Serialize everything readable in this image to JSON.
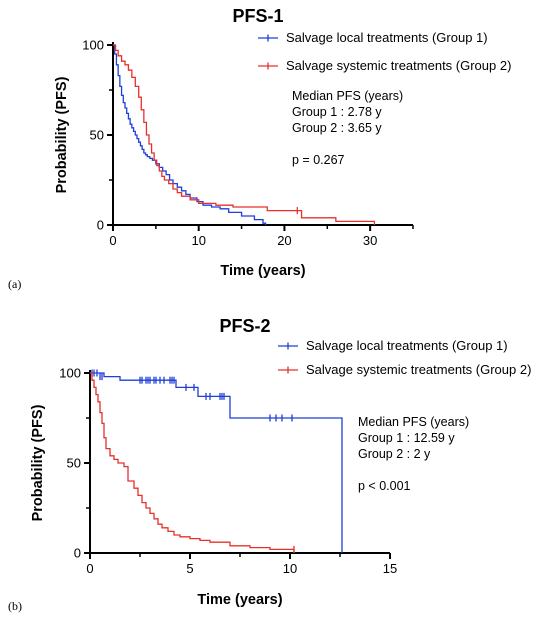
{
  "chart_data": [
    {
      "panel_label": "(a)",
      "type": "line",
      "title": "PFS-1",
      "xlabel": "Time (years)",
      "ylabel": "Probability (PFS)",
      "xlim": [
        0,
        35
      ],
      "ylim": [
        0,
        100
      ],
      "xticks": [
        0,
        10,
        20,
        30
      ],
      "yticks": [
        0,
        50,
        100
      ],
      "grid": false,
      "legend_position": "top-right",
      "series": [
        {
          "name": "Salvage local treatments (Group 1)",
          "color": "#1f3fd9",
          "x": [
            0,
            0.2,
            0.4,
            0.6,
            0.8,
            1.0,
            1.2,
            1.4,
            1.6,
            1.8,
            2.0,
            2.2,
            2.4,
            2.6,
            2.8,
            3.0,
            3.2,
            3.4,
            3.6,
            3.8,
            4.0,
            4.3,
            4.6,
            5.0,
            5.4,
            5.8,
            6.2,
            6.6,
            7.0,
            7.5,
            8.0,
            8.5,
            9.0,
            9.8,
            10.5,
            11.5,
            12.5,
            13.5,
            15.0,
            16.5,
            17.5,
            17.8
          ],
          "y": [
            100,
            95,
            89,
            83,
            77,
            72,
            68,
            65,
            62,
            59,
            56,
            54,
            52,
            50,
            48,
            46,
            44,
            42,
            40,
            39,
            38,
            37,
            36,
            34,
            32,
            30,
            28,
            25,
            23,
            21,
            19,
            17,
            15,
            13,
            11,
            10,
            9,
            7,
            5,
            3,
            1,
            0
          ],
          "censored_x": [],
          "censored_y": []
        },
        {
          "name": "Salvage systemic treatments (Group 2)",
          "color": "#e8302a",
          "x": [
            0,
            0.3,
            0.6,
            1.0,
            1.4,
            1.8,
            2.2,
            2.6,
            3.0,
            3.3,
            3.6,
            3.9,
            4.2,
            4.5,
            4.8,
            5.1,
            5.4,
            5.7,
            6.0,
            6.5,
            7.0,
            7.5,
            8.0,
            9.0,
            10.0,
            12.0,
            14.0,
            18.0,
            21.5,
            22.0,
            26.0,
            30.5
          ],
          "y": [
            100,
            97,
            94,
            91,
            89,
            86,
            82,
            77,
            71,
            64,
            57,
            50,
            45,
            40,
            36,
            33,
            30,
            27,
            25,
            23,
            20,
            18,
            16,
            14,
            12,
            11,
            10,
            8,
            8,
            4,
            2,
            0
          ],
          "censored_x": [
            21.5
          ],
          "censored_y": [
            8
          ]
        }
      ],
      "annotation_lines": [
        "Median PFS (years)",
        "Group 1 : 2.78 y",
        "Group 2 : 3.65 y",
        "",
        "p = 0.267"
      ]
    },
    {
      "panel_label": "(b)",
      "type": "line",
      "title": "PFS-2",
      "xlabel": "Time (years)",
      "ylabel": "Probability (PFS)",
      "xlim": [
        0,
        15
      ],
      "ylim": [
        0,
        100
      ],
      "xticks": [
        0,
        5,
        10,
        15
      ],
      "yticks": [
        0,
        50,
        100
      ],
      "grid": false,
      "legend_position": "top-right",
      "series": [
        {
          "name": "Salvage local treatments (Group 1)",
          "color": "#1f3fd9",
          "x": [
            0,
            0.3,
            0.7,
            1.5,
            4.3,
            5.4,
            7.0,
            12.6,
            12.6
          ],
          "y": [
            100,
            100,
            98,
            96,
            92,
            87,
            75,
            75,
            0
          ],
          "censored_x": [
            0.1,
            0.2,
            0.35,
            0.5,
            0.6,
            2.5,
            2.6,
            2.8,
            2.9,
            3.0,
            3.2,
            3.3,
            3.5,
            3.7,
            4.0,
            4.1,
            4.2,
            4.8,
            5.2,
            5.8,
            6.0,
            6.5,
            6.6,
            6.7,
            9.0,
            9.3,
            9.6,
            10.1
          ],
          "censored_y": [
            100,
            100,
            100,
            98,
            98,
            96,
            96,
            96,
            96,
            96,
            96,
            96,
            96,
            96,
            96,
            96,
            96,
            92,
            92,
            87,
            87,
            87,
            87,
            87,
            75,
            75,
            75,
            75
          ]
        },
        {
          "name": "Salvage systemic treatments (Group 2)",
          "color": "#e8302a",
          "x": [
            0,
            0.1,
            0.2,
            0.3,
            0.4,
            0.5,
            0.6,
            0.7,
            0.8,
            1.0,
            1.2,
            1.4,
            1.7,
            1.9,
            2.2,
            2.4,
            2.6,
            2.8,
            3.0,
            3.2,
            3.4,
            3.6,
            3.9,
            4.2,
            4.5,
            5.0,
            5.5,
            6.0,
            7.0,
            8.0,
            9.0,
            10.2
          ],
          "y": [
            100,
            96,
            92,
            88,
            84,
            78,
            72,
            64,
            58,
            54,
            52,
            50,
            48,
            40,
            36,
            32,
            28,
            25,
            22,
            19,
            16,
            14,
            12,
            10,
            9,
            8,
            7,
            6,
            4,
            3,
            2,
            0
          ],
          "censored_x": [
            10.2
          ],
          "censored_y": [
            2
          ]
        }
      ],
      "annotation_lines": [
        "Median PFS (years)",
        "Group 1 : 12.59 y",
        "Group 2 : 2 y",
        "",
        "p < 0.001"
      ]
    }
  ]
}
